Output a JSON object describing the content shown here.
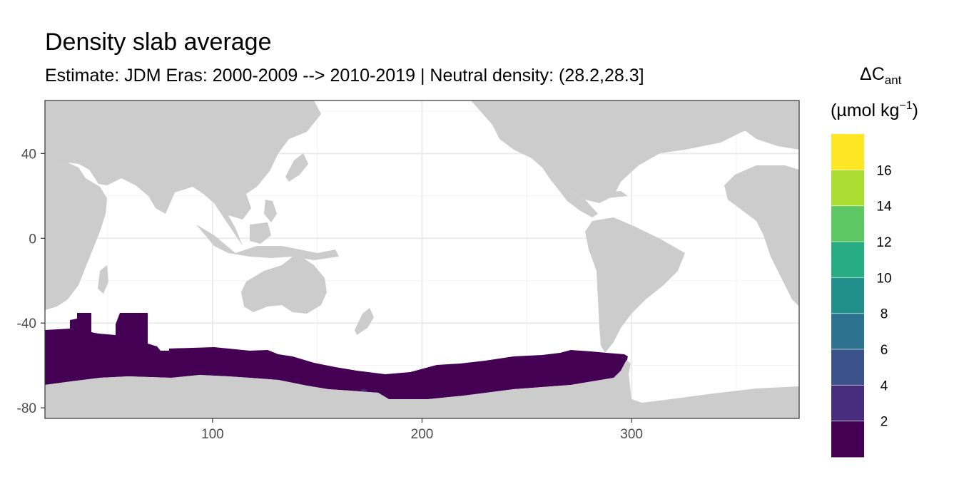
{
  "title": "Density slab average",
  "subtitle": "Estimate: JDM Eras: 2000-2009 --> 2010-2019 | Neutral density: (28.2,28.3]",
  "chart_data": {
    "type": "heatmap",
    "title": "Density slab average",
    "subtitle": "Estimate: JDM Eras: 2000-2009 --> 2010-2019 | Neutral density: (28.2,28.3]",
    "xlabel": "",
    "ylabel": "",
    "xlim": [
      20,
      380
    ],
    "ylim": [
      -85,
      65
    ],
    "x_ticks": [
      100,
      200,
      300
    ],
    "y_ticks": [
      -80,
      -40,
      0,
      40
    ],
    "grid": true,
    "legend": {
      "position": "right",
      "title_main": "ΔC",
      "title_sub": "ant",
      "title_unit": "(µmol kg",
      "title_exp": "−1",
      "title_close": ")",
      "breaks": [
        2,
        4,
        6,
        8,
        10,
        12,
        14,
        16
      ],
      "colors": [
        "#440154",
        "#472D7B",
        "#3B528B",
        "#2C728E",
        "#21908C",
        "#27AD81",
        "#5DC863",
        "#AADC32",
        "#FDE725"
      ]
    },
    "field": [
      {
        "region": "Southern Ocean slab",
        "value_class": 1,
        "approx_value": "0-2",
        "lon_range": [
          20,
          298
        ],
        "lat_range": [
          -77,
          -35
        ]
      },
      {
        "region": "Ross Sea patch",
        "value_class": 2,
        "approx_value": "2-4",
        "lon_range": [
          165,
          182
        ],
        "lat_range": [
          -77,
          -72
        ]
      }
    ],
    "land_color": "#CCCCCC"
  }
}
